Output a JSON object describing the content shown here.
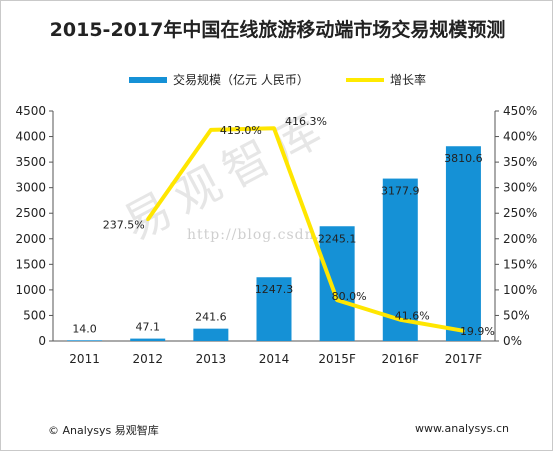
{
  "title": "2015-2017年中国在线旅游移动端市场交易规模预测",
  "legend": {
    "bar_label": "交易规模（亿元 人民币）",
    "line_label": "增长率"
  },
  "watermark": {
    "text": "易观智库",
    "url": "http://blog.csdn.net/"
  },
  "footer": {
    "source": "© Analysys 易观智库",
    "website": "www.analysys.cn"
  },
  "colors": {
    "bar": "#1591d6",
    "line": "#ffe600"
  },
  "chart_data": {
    "type": "bar",
    "categories": [
      "2011",
      "2012",
      "2013",
      "2014",
      "2015F",
      "2016F",
      "2017F"
    ],
    "series": [
      {
        "name": "交易规模（亿元 人民币）",
        "type": "bar",
        "axis": "left",
        "values": [
          14.0,
          47.1,
          241.6,
          1247.3,
          2245.1,
          3177.9,
          3810.6
        ],
        "labels": [
          "14.0",
          "47.1",
          "241.6",
          "1247.3",
          "2245.1",
          "3177.9",
          "3810.6"
        ]
      },
      {
        "name": "增长率",
        "type": "line",
        "axis": "right",
        "values": [
          null,
          237.5,
          413.0,
          416.3,
          80.0,
          41.6,
          19.9
        ],
        "labels": [
          "",
          "237.5%",
          "413.0%",
          "416.3%",
          "80.0%",
          "41.6%",
          "19.9%"
        ]
      }
    ],
    "y_left": {
      "min": 0,
      "max": 4500,
      "ticks": [
        "0",
        "500",
        "1000",
        "1500",
        "2000",
        "2500",
        "3000",
        "3500",
        "4000",
        "4500"
      ]
    },
    "y_right": {
      "min": 0,
      "max": 450,
      "ticks": [
        "0%",
        "50%",
        "100%",
        "150%",
        "200%",
        "250%",
        "300%",
        "350%",
        "400%",
        "450%"
      ]
    },
    "legend_position": "top-center",
    "grid": false
  }
}
